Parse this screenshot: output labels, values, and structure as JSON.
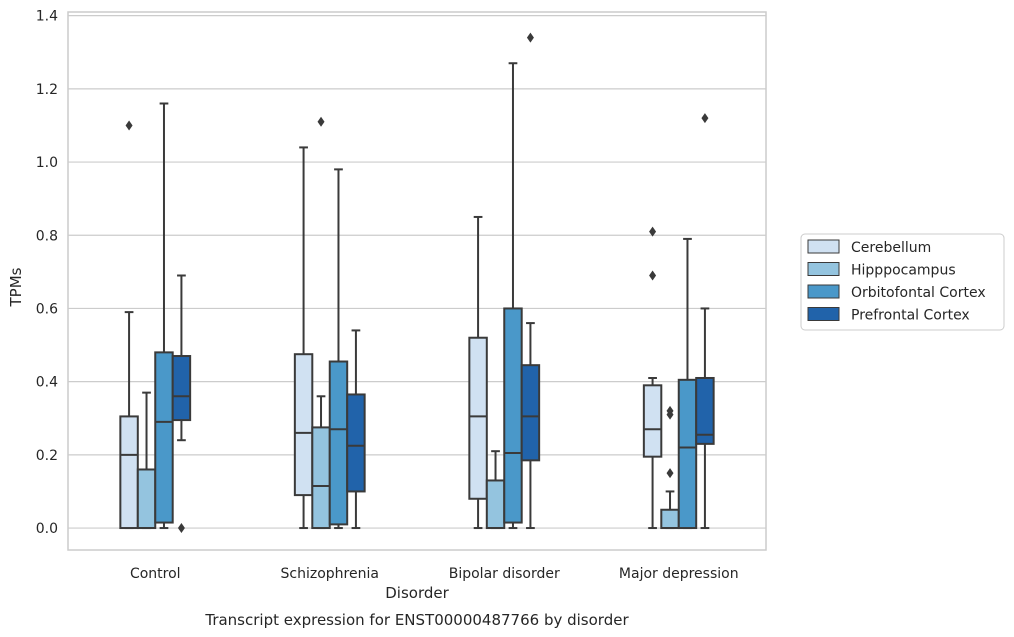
{
  "chart_data": {
    "type": "box",
    "caption": "Transcript expression for ENST00000487766 by disorder",
    "xlabel": "Disorder",
    "ylabel": "TPMs",
    "ylim": [
      -0.06,
      1.41
    ],
    "yticks": [
      "0.0",
      "0.2",
      "0.4",
      "0.6",
      "0.8",
      "1.0",
      "1.2",
      "1.4"
    ],
    "categories": [
      "Control",
      "Schizophrenia",
      "Bipolar disorder",
      "Major depression"
    ],
    "grid": true,
    "legend_position": "right",
    "colors": {
      "Cerebellum": "#d0e1f2",
      "Hipppocampus": "#94c4df",
      "Orbitofontal Cortex": "#4a98c9",
      "Prefrontal Cortex": "#2163aa",
      "edge": "#3a3a3a",
      "grid": "#cccccc"
    },
    "series": [
      {
        "name": "Cerebellum",
        "boxes": [
          {
            "whislo": 0.0,
            "q1": 0.0,
            "med": 0.2,
            "q3": 0.305,
            "whishi": 0.59,
            "fliers": [
              1.1
            ]
          },
          {
            "whislo": 0.0,
            "q1": 0.09,
            "med": 0.26,
            "q3": 0.475,
            "whishi": 1.04,
            "fliers": []
          },
          {
            "whislo": 0.0,
            "q1": 0.08,
            "med": 0.305,
            "q3": 0.52,
            "whishi": 0.85,
            "fliers": []
          },
          {
            "whislo": 0.0,
            "q1": 0.195,
            "med": 0.27,
            "q3": 0.39,
            "whishi": 0.41,
            "fliers": [
              0.69,
              0.81
            ]
          }
        ]
      },
      {
        "name": "Hipppocampus",
        "boxes": [
          {
            "whislo": 0.0,
            "q1": 0.0,
            "med": 0.0,
            "q3": 0.16,
            "whishi": 0.37,
            "fliers": []
          },
          {
            "whislo": 0.0,
            "q1": 0.0,
            "med": 0.115,
            "q3": 0.275,
            "whishi": 0.36,
            "fliers": [
              1.11
            ]
          },
          {
            "whislo": 0.0,
            "q1": 0.0,
            "med": 0.0,
            "q3": 0.13,
            "whishi": 0.21,
            "fliers": []
          },
          {
            "whislo": 0.0,
            "q1": 0.0,
            "med": 0.0,
            "q3": 0.05,
            "whishi": 0.1,
            "fliers": [
              0.15,
              0.31,
              0.32
            ]
          }
        ]
      },
      {
        "name": "Orbitofontal Cortex",
        "boxes": [
          {
            "whislo": 0.0,
            "q1": 0.015,
            "med": 0.29,
            "q3": 0.48,
            "whishi": 1.16,
            "fliers": []
          },
          {
            "whislo": 0.0,
            "q1": 0.01,
            "med": 0.27,
            "q3": 0.455,
            "whishi": 0.98,
            "fliers": []
          },
          {
            "whislo": 0.0,
            "q1": 0.015,
            "med": 0.205,
            "q3": 0.6,
            "whishi": 1.27,
            "fliers": []
          },
          {
            "whislo": 0.0,
            "q1": 0.0,
            "med": 0.22,
            "q3": 0.405,
            "whishi": 0.79,
            "fliers": []
          }
        ]
      },
      {
        "name": "Prefrontal Cortex",
        "boxes": [
          {
            "whislo": 0.24,
            "q1": 0.295,
            "med": 0.36,
            "q3": 0.47,
            "whishi": 0.69,
            "fliers": [
              0.0
            ]
          },
          {
            "whislo": 0.0,
            "q1": 0.1,
            "med": 0.225,
            "q3": 0.365,
            "whishi": 0.54,
            "fliers": []
          },
          {
            "whislo": 0.0,
            "q1": 0.185,
            "med": 0.305,
            "q3": 0.445,
            "whishi": 0.56,
            "fliers": [
              1.34
            ]
          },
          {
            "whislo": 0.0,
            "q1": 0.23,
            "med": 0.255,
            "q3": 0.41,
            "whishi": 0.6,
            "fliers": [
              1.12
            ]
          }
        ]
      }
    ]
  }
}
